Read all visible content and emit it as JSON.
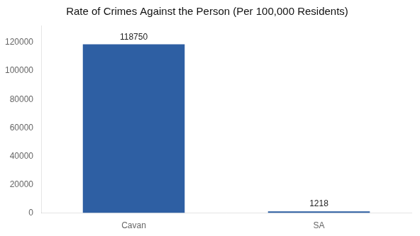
{
  "chart_data": {
    "type": "bar",
    "title": "Rate of Crimes Against the Person (Per 100,000 Residents)",
    "categories": [
      "Cavan",
      "SA"
    ],
    "values": [
      118750,
      1218
    ],
    "color": "#2e5fa3",
    "ylim": [
      0,
      132000
    ],
    "yticks": [
      0,
      20000,
      40000,
      60000,
      80000,
      100000,
      120000
    ],
    "grid": false,
    "data_labels": true
  }
}
